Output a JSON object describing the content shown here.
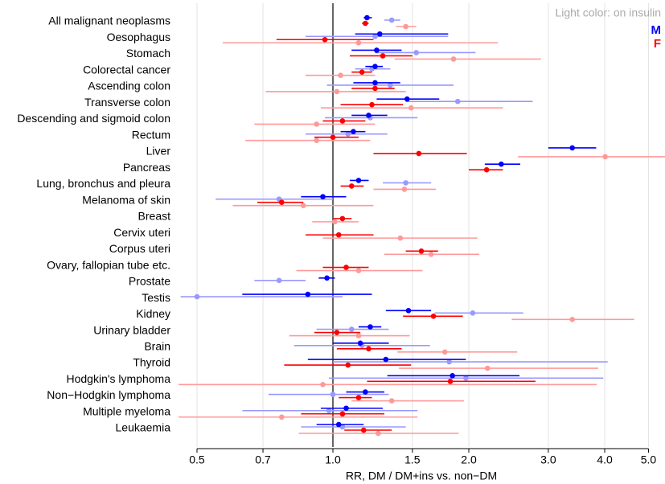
{
  "chart_data": {
    "type": "forest",
    "xlabel": "RR, DM / DM+ins vs. non−DM",
    "annotation": "Light color: on insulin",
    "legend_position": "top-right",
    "log_x": true,
    "grid": true,
    "reference_line": 1,
    "xlim": [
      0.455,
      5.44
    ],
    "xticks": [
      0.5,
      0.7,
      {
        "value": 1,
        "label": "1.0"
      },
      1.5,
      {
        "value": 2,
        "label": "2.0"
      },
      {
        "value": 3,
        "label": "3.0"
      },
      {
        "value": 4,
        "label": "4.0"
      },
      {
        "value": 5,
        "label": "5.0"
      }
    ],
    "categories": [
      "All malignant neoplasms",
      "Oesophagus",
      "Stomach",
      "Colorectal cancer",
      "Ascending colon",
      "Transverse colon",
      "Descending and sigmoid colon",
      "Rectum",
      "Liver",
      "Pancreas",
      "Lung, bronchus and pleura",
      "Melanoma of skin",
      "Breast",
      "Cervix uteri",
      "Corpus uteri",
      "Ovary, fallopian tube etc.",
      "Prostate",
      "Testis",
      "Kidney",
      "Urinary bladder",
      "Brain",
      "Thyroid",
      "Hodgkin's lymphoma",
      "Non−Hodgkin lymphoma",
      "Multiple myeloma",
      "Leukaemia"
    ],
    "series": [
      {
        "name": "M",
        "color": "#0000ff",
        "values": [
          1.19,
          1.27,
          1.25,
          1.24,
          1.24,
          1.46,
          1.2,
          1.11,
          3.39,
          2.36,
          1.14,
          0.95,
          null,
          null,
          null,
          null,
          0.97,
          0.88,
          1.47,
          1.21,
          1.15,
          1.31,
          1.84,
          1.18,
          1.07,
          1.03
        ],
        "lower": [
          1.17,
          1.12,
          1.1,
          1.18,
          1.11,
          1.25,
          1.1,
          1.04,
          3.0,
          2.17,
          1.09,
          0.85,
          null,
          null,
          null,
          null,
          0.93,
          0.63,
          1.31,
          1.14,
          1.0,
          0.88,
          1.32,
          1.07,
          0.94,
          0.92
        ],
        "upper": [
          1.22,
          1.8,
          1.42,
          1.29,
          1.41,
          1.72,
          1.32,
          1.18,
          3.83,
          2.6,
          1.2,
          1.07,
          null,
          null,
          null,
          null,
          1.01,
          1.22,
          1.65,
          1.28,
          1.33,
          1.97,
          2.59,
          1.3,
          1.29,
          1.17
        ]
      },
      {
        "name": "F",
        "color": "#ff0000",
        "values": [
          1.18,
          0.96,
          1.29,
          1.16,
          1.24,
          1.22,
          1.05,
          1.0,
          1.55,
          2.19,
          1.1,
          0.77,
          1.05,
          1.03,
          1.57,
          1.07,
          null,
          null,
          1.67,
          1.02,
          1.2,
          1.08,
          1.82,
          1.14,
          1.05,
          1.17
        ],
        "lower": [
          1.16,
          0.75,
          1.09,
          1.1,
          1.1,
          1.04,
          0.95,
          0.91,
          1.23,
          2.0,
          1.04,
          0.68,
          1.0,
          0.87,
          1.45,
          0.95,
          null,
          null,
          1.43,
          0.91,
          1.02,
          0.78,
          1.19,
          1.03,
          0.85,
          1.06
        ],
        "upper": [
          1.2,
          1.23,
          1.5,
          1.22,
          1.37,
          1.43,
          1.18,
          1.14,
          1.98,
          2.38,
          1.17,
          0.86,
          1.1,
          1.23,
          1.71,
          1.2,
          null,
          null,
          1.94,
          1.15,
          1.42,
          1.49,
          2.81,
          1.22,
          1.3,
          1.35
        ]
      },
      {
        "color": "#9999ff",
        "values": [
          1.35,
          1.24,
          1.53,
          1.22,
          1.34,
          1.89,
          1.21,
          1.08,
          null,
          null,
          1.45,
          0.76,
          null,
          null,
          null,
          null,
          0.76,
          0.5,
          2.04,
          1.1,
          1.16,
          1.81,
          1.97,
          1.0,
          0.98,
          1.05
        ],
        "lower": [
          1.3,
          0.87,
          1.24,
          1.12,
          0.97,
          1.45,
          0.96,
          0.87,
          null,
          null,
          1.29,
          0.55,
          null,
          null,
          null,
          null,
          0.67,
          0.46,
          1.68,
          0.92,
          0.82,
          1.0,
          0.98,
          0.72,
          0.63,
          0.85
        ],
        "upper": [
          1.41,
          1.8,
          2.07,
          1.34,
          1.85,
          2.77,
          1.54,
          1.32,
          null,
          null,
          1.65,
          1.0,
          null,
          null,
          null,
          null,
          0.87,
          1.05,
          2.64,
          1.33,
          1.64,
          4.06,
          3.97,
          1.33,
          1.54,
          1.45
        ]
      },
      {
        "color": "#ff9999",
        "values": [
          1.45,
          1.14,
          1.85,
          1.04,
          1.02,
          1.49,
          0.92,
          0.92,
          4.01,
          null,
          1.44,
          0.86,
          1.01,
          1.41,
          1.65,
          1.14,
          null,
          null,
          3.39,
          1.14,
          1.77,
          2.2,
          0.95,
          1.35,
          0.77,
          1.26
        ],
        "lower": [
          1.38,
          0.57,
          1.37,
          0.87,
          0.71,
          0.94,
          0.67,
          0.64,
          2.57,
          null,
          1.23,
          0.6,
          0.9,
          0.95,
          1.3,
          0.83,
          null,
          null,
          2.49,
          0.8,
          1.39,
          1.4,
          0.45,
          1.1,
          0.45,
          0.84
        ],
        "upper": [
          1.53,
          2.32,
          2.89,
          1.24,
          1.45,
          2.38,
          1.24,
          1.21,
          5.6,
          null,
          1.69,
          1.23,
          1.14,
          2.09,
          2.11,
          1.58,
          null,
          null,
          4.65,
          1.48,
          2.56,
          3.87,
          3.84,
          1.95,
          1.54,
          1.9
        ]
      }
    ]
  }
}
